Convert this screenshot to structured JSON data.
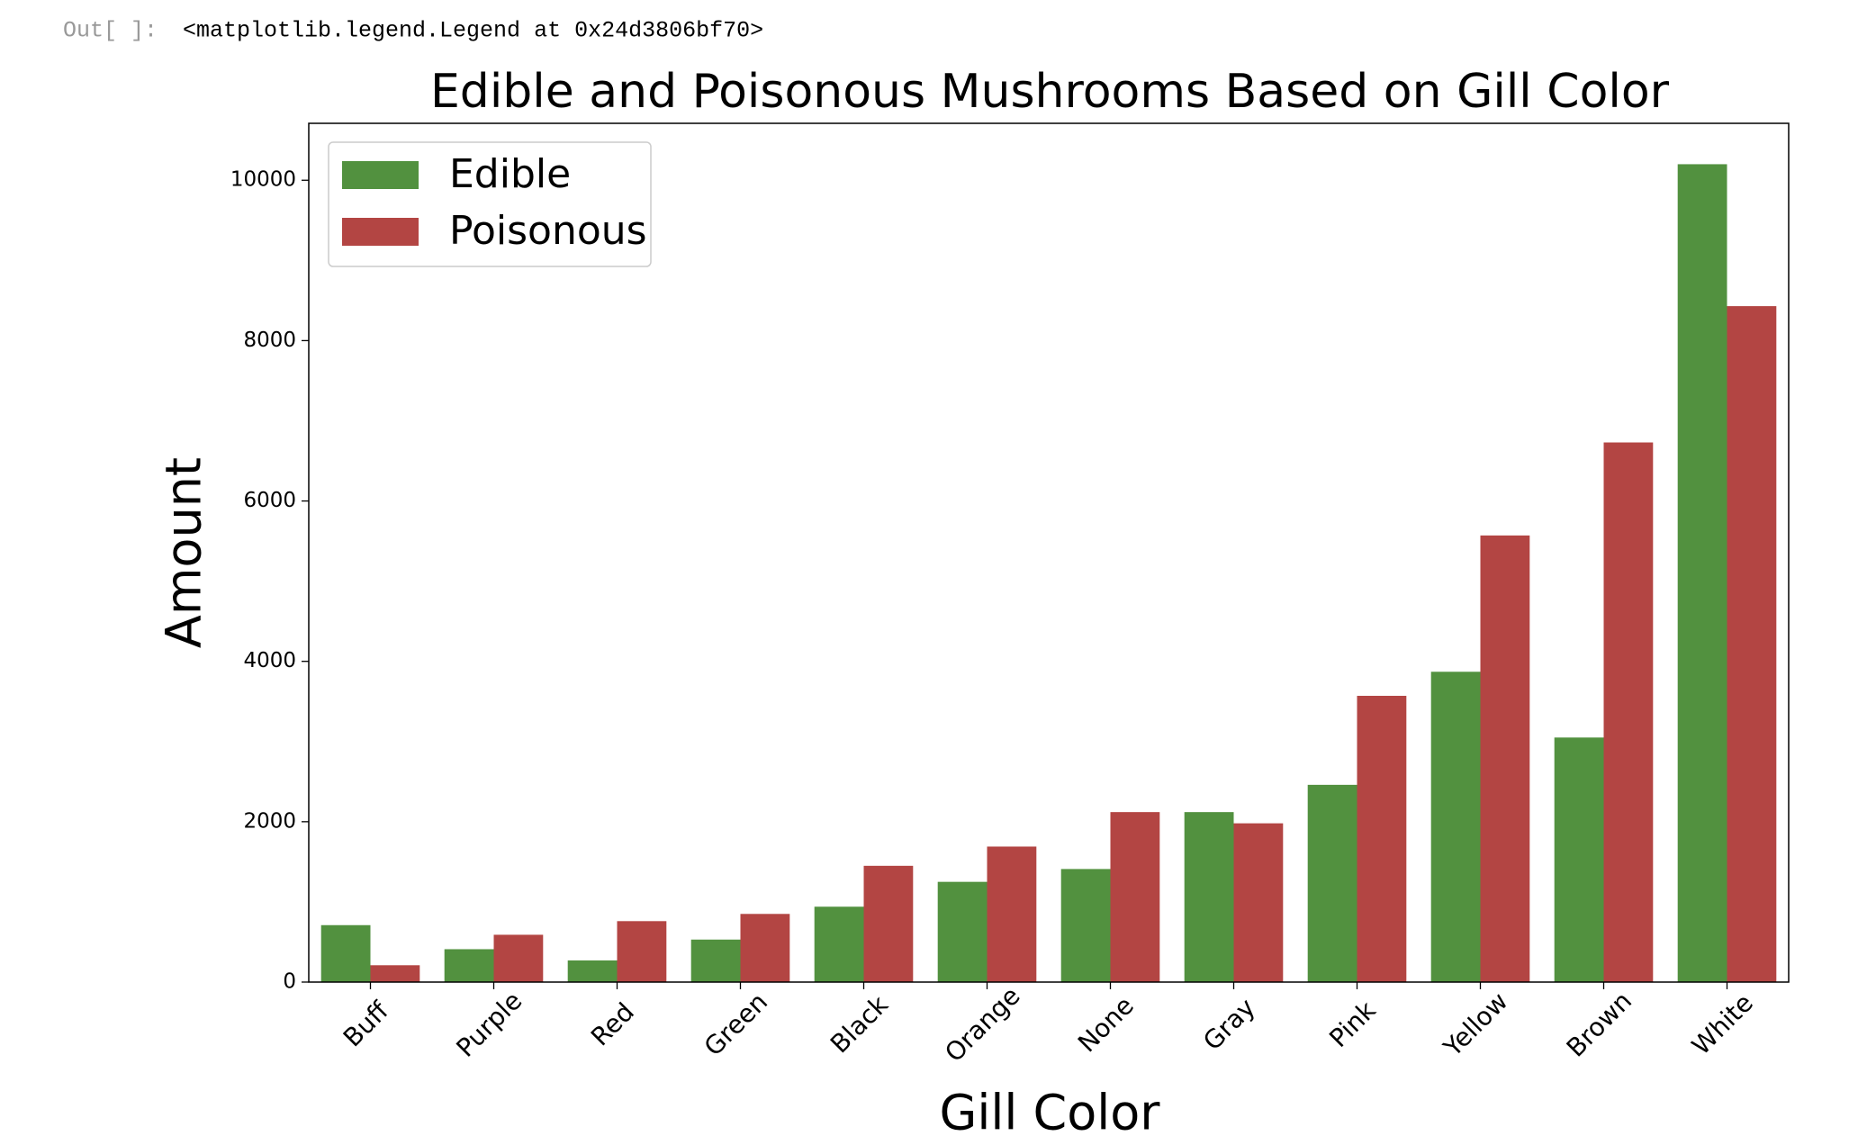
{
  "cell": {
    "prompt": "Out[ ]:",
    "output": "<matplotlib.legend.Legend at 0x24d3806bf70>"
  },
  "chart_data": {
    "type": "bar",
    "title": "Edible and Poisonous Mushrooms Based on Gill Color",
    "x_label": "Gill Color",
    "y_label": "Amount",
    "categories": [
      "Buff",
      "Purple",
      "Red",
      "Green",
      "Black",
      "Orange",
      "None",
      "Gray",
      "Pink",
      "Yellow",
      "Brown",
      "White"
    ],
    "series": [
      {
        "name": "Edible",
        "color": "#52913f",
        "values": [
          710,
          410,
          270,
          530,
          940,
          1250,
          1410,
          2120,
          2460,
          3870,
          3050,
          10200
        ]
      },
      {
        "name": "Poisonous",
        "color": "#b34543",
        "values": [
          210,
          590,
          760,
          850,
          1450,
          1690,
          2120,
          1980,
          3570,
          5570,
          6730,
          8430
        ]
      }
    ],
    "ylim": [
      0,
      10710
    ],
    "yticks": [
      0,
      2000,
      4000,
      6000,
      8000,
      10000
    ],
    "grid": false,
    "legend": "upper left"
  }
}
